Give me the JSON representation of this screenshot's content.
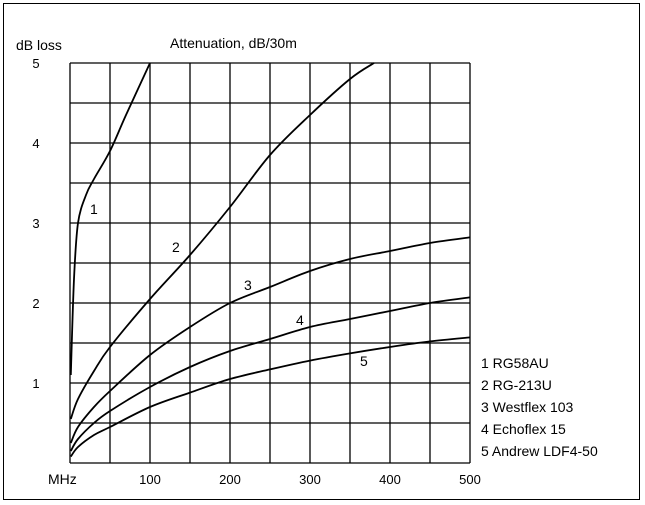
{
  "chart_data": {
    "type": "line",
    "title": "Attenuation, dB/30m",
    "xlabel": "MHz",
    "ylabel": "dB loss",
    "xlim": [
      0,
      500
    ],
    "ylim": [
      0,
      5
    ],
    "grid": true,
    "x_ticks": [
      "100",
      "200",
      "300",
      "400",
      "500"
    ],
    "y_ticks": [
      "1",
      "2",
      "3",
      "4",
      "5"
    ],
    "series": [
      {
        "id": "1",
        "name": "RG58AU",
        "x": [
          1,
          5,
          10,
          20,
          30,
          50,
          70,
          100
        ],
        "y": [
          1.1,
          2.3,
          3.0,
          3.35,
          3.55,
          3.9,
          4.35,
          5.0
        ]
      },
      {
        "id": "2",
        "name": "RG-213U",
        "x": [
          1,
          10,
          30,
          50,
          100,
          150,
          200,
          250,
          300,
          350,
          380
        ],
        "y": [
          0.55,
          0.8,
          1.15,
          1.45,
          2.05,
          2.6,
          3.2,
          3.85,
          4.35,
          4.8,
          5.0
        ]
      },
      {
        "id": "3",
        "name": "Westflex 103",
        "x": [
          1,
          10,
          30,
          50,
          100,
          150,
          200,
          250,
          300,
          350,
          400,
          450,
          500
        ],
        "y": [
          0.25,
          0.45,
          0.7,
          0.9,
          1.35,
          1.7,
          2.0,
          2.2,
          2.4,
          2.55,
          2.65,
          2.75,
          2.82
        ]
      },
      {
        "id": "4",
        "name": "Echoflex 15",
        "x": [
          1,
          10,
          30,
          50,
          100,
          150,
          200,
          250,
          300,
          350,
          400,
          450,
          500
        ],
        "y": [
          0.15,
          0.3,
          0.5,
          0.65,
          0.95,
          1.2,
          1.4,
          1.55,
          1.7,
          1.8,
          1.9,
          2.0,
          2.07
        ]
      },
      {
        "id": "5",
        "name": "Andrew LDF4-50",
        "x": [
          1,
          10,
          30,
          50,
          100,
          150,
          200,
          250,
          300,
          350,
          400,
          450,
          500
        ],
        "y": [
          0.08,
          0.2,
          0.35,
          0.45,
          0.7,
          0.88,
          1.05,
          1.17,
          1.28,
          1.37,
          1.45,
          1.52,
          1.57
        ]
      }
    ],
    "curve_labels": [
      "1",
      "2",
      "3",
      "4",
      "5"
    ],
    "legend": [
      "1  RG58AU",
      "2  RG-213U",
      "3  Westflex 103",
      "4  Echoflex 15",
      "5  Andrew LDF4-50"
    ]
  }
}
